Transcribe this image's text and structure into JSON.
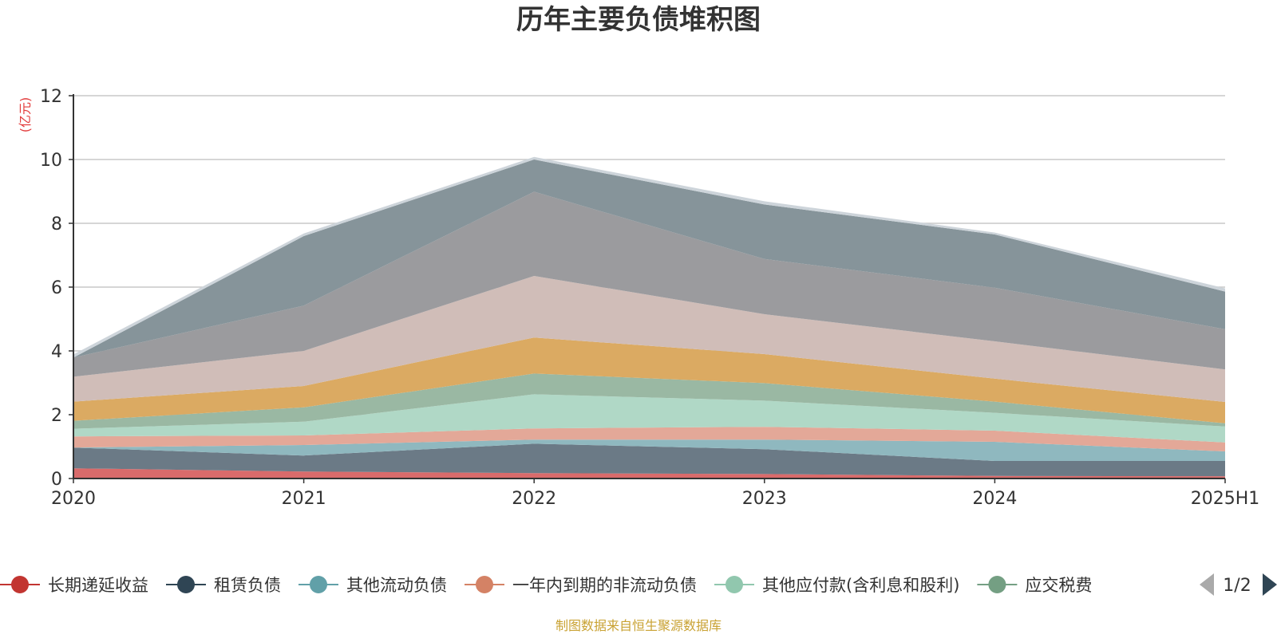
{
  "chart_data": {
    "type": "area",
    "title": "历年主要负债堆积图",
    "unit": "(亿元)",
    "categories": [
      "2020",
      "2021",
      "2022",
      "2023",
      "2024",
      "2025H1"
    ],
    "ylim": [
      0,
      12
    ],
    "yticks": [
      "0",
      "2",
      "4",
      "6",
      "8",
      "10",
      "12"
    ],
    "grid": true,
    "stacked": true,
    "legend_position": "bottom",
    "series": [
      {
        "name": "长期递延收益",
        "color": "#d96b6b",
        "values": [
          0.32,
          0.22,
          0.17,
          0.14,
          0.08,
          0.07
        ]
      },
      {
        "name": "租赁负债",
        "color": "#6b7a86",
        "values": [
          0.65,
          0.5,
          0.92,
          0.78,
          0.47,
          0.48
        ]
      },
      {
        "name": "其他流动负债",
        "color": "#8fb8bf",
        "values": [
          0.0,
          0.33,
          0.13,
          0.3,
          0.6,
          0.3
        ]
      },
      {
        "name": "一年内到期的非流动负债",
        "color": "#e3a898",
        "values": [
          0.35,
          0.3,
          0.35,
          0.4,
          0.35,
          0.28
        ]
      },
      {
        "name": "其他应付款(含利息和股利)",
        "color": "#b0d8c6",
        "values": [
          0.24,
          0.43,
          1.07,
          0.82,
          0.56,
          0.5
        ]
      },
      {
        "name": "应交税费",
        "color": "#9ab8a3",
        "values": [
          0.25,
          0.45,
          0.65,
          0.55,
          0.35,
          0.1
        ]
      },
      {
        "name": "",
        "color": "#dbaa62",
        "values": [
          0.6,
          0.67,
          1.13,
          0.91,
          0.72,
          0.67
        ]
      },
      {
        "name": "",
        "color": "#d0bdb8",
        "values": [
          0.78,
          1.1,
          1.93,
          1.25,
          1.17,
          1.02
        ]
      },
      {
        "name": "",
        "color": "#9b9b9e",
        "values": [
          0.6,
          1.42,
          2.64,
          1.73,
          1.68,
          1.26
        ]
      },
      {
        "name": "",
        "color": "#86949a",
        "values": [
          0.0,
          2.18,
          1.01,
          1.71,
          1.67,
          1.18
        ]
      },
      {
        "name": "",
        "color": "#cdd4da",
        "values": [
          0.1,
          0.08,
          0.08,
          0.1,
          0.06,
          0.1
        ]
      }
    ]
  },
  "legend": {
    "page": "1/2",
    "prev_icon": "triangle-left-icon",
    "next_icon": "triangle-right-icon",
    "disabled_color": "#aaaaaa",
    "active_color": "#2f4554"
  },
  "legend_markers": [
    "#c23531",
    "#2f4554",
    "#61a0a8",
    "#d48265",
    "#91c7ae",
    "#749f83"
  ],
  "source": "制图数据来自恒生聚源数据库"
}
